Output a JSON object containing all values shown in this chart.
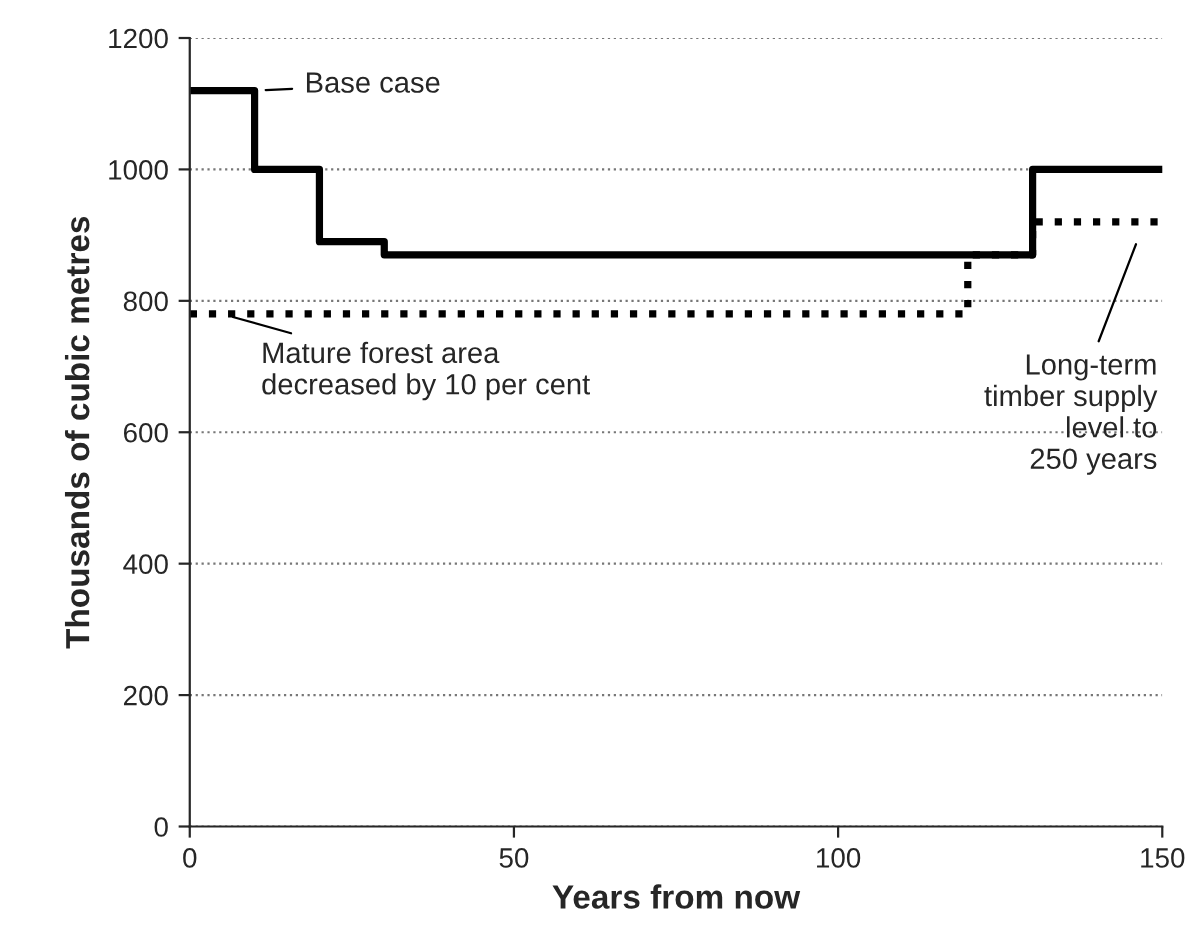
{
  "chart_data": {
    "type": "step",
    "xlabel": "Years from now",
    "ylabel": "Thousands of cubic metres",
    "xlim": [
      0,
      150
    ],
    "xticks": [
      0,
      50,
      100,
      150
    ],
    "ylim": [
      0,
      1200
    ],
    "yticks": [
      0,
      200,
      400,
      600,
      800,
      1000,
      1200
    ],
    "grid": "y",
    "legend": false,
    "series": [
      {
        "color": "#000000",
        "line_style": "solid",
        "x": [
          0,
          10,
          20,
          30,
          130,
          150
        ],
        "values": [
          1120,
          1000,
          890,
          870,
          1000,
          1000
        ]
      },
      {
        "color": "#000000",
        "line_style": "dotted",
        "x": [
          0,
          120,
          130,
          150
        ],
        "values": [
          780,
          870,
          920,
          920
        ]
      }
    ],
    "annotations": [
      {
        "text": "Base case",
        "x": 10,
        "y": 1120
      },
      {
        "text": "Mature forest area\ndecreased by 10 per cent",
        "x": 5,
        "y": 780
      },
      "Long-term\ntimber supply\nlevel to\n250 years"
    ]
  }
}
